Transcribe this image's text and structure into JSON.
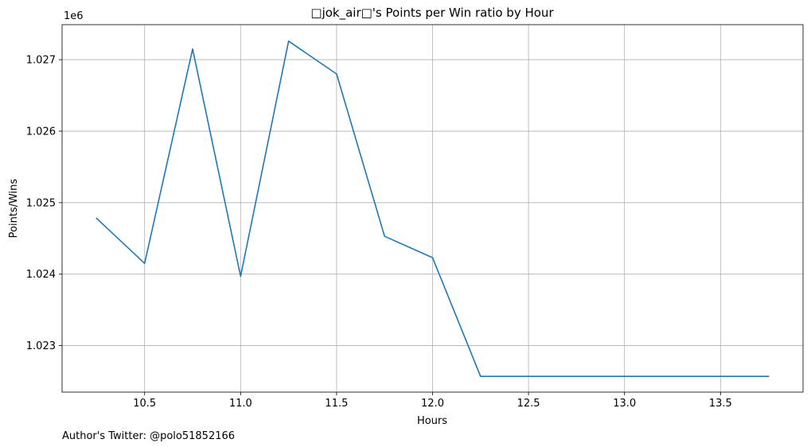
{
  "chart_data": {
    "type": "line",
    "title": "□jok_air□'s Points per Win ratio by Hour",
    "xlabel": "Hours",
    "ylabel": "Points/Wins",
    "y_offset_label": "1e6",
    "x_ticks": [
      "10.5",
      "11.0",
      "11.5",
      "12.0",
      "12.5",
      "13.0",
      "13.5"
    ],
    "y_ticks": [
      "1.023",
      "1.024",
      "1.025",
      "1.026",
      "1.027"
    ],
    "xlim": [
      10.07,
      13.93
    ],
    "ylim": [
      1022350,
      1027490
    ],
    "grid": true,
    "line_color": "#1f77b4",
    "series": [
      {
        "x": [
          10.25,
          10.5,
          10.75,
          11.0,
          11.25,
          11.5,
          11.75,
          12.0,
          12.25,
          12.5,
          12.75,
          13.0,
          13.25,
          13.5,
          13.75
        ],
        "values": [
          1024780,
          1024150,
          1027150,
          1023970,
          1027260,
          1026800,
          1024530,
          1024230,
          1022570,
          1022570,
          1022570,
          1022570,
          1022570,
          1022570,
          1022570
        ]
      }
    ]
  },
  "footer": {
    "note": "Author's Twitter: @polo51852166"
  }
}
